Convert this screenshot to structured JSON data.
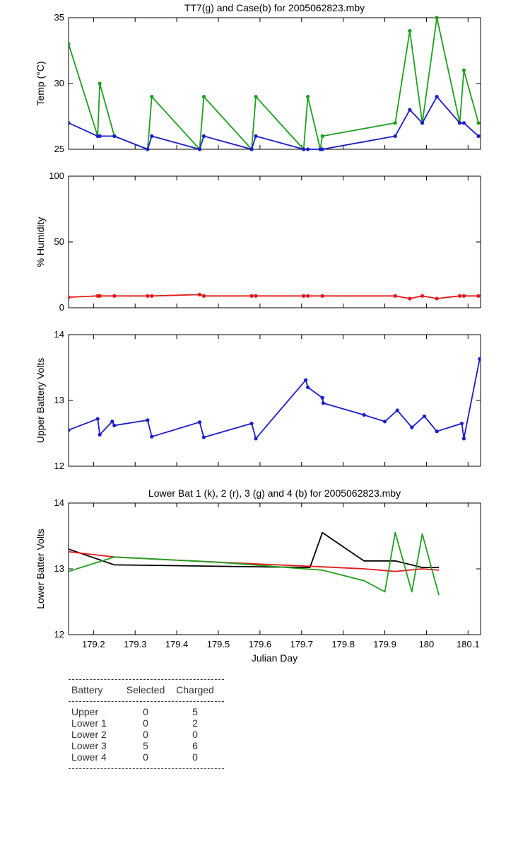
{
  "colors": {
    "g": "#1ea01e",
    "b": "#1c1ccc",
    "r": "#e21b1b",
    "k": "#000000"
  },
  "chart_data": [
    {
      "id": "temp",
      "type": "line",
      "title": "TT7(g) and Case(b) for 2005062823.mby",
      "xlabel": "",
      "ylabel": "Temp  (°C)",
      "xlim": [
        179.14,
        180.13
      ],
      "ylim": [
        25,
        35
      ],
      "yticks": [
        25,
        30,
        35
      ],
      "show_xtick_labels": false,
      "markers": true,
      "series": [
        {
          "color": "g",
          "x": [
            179.14,
            179.21,
            179.215,
            179.25,
            179.33,
            179.34,
            179.455,
            179.465,
            179.58,
            179.59,
            179.705,
            179.715,
            179.745,
            179.75,
            179.925,
            179.96,
            179.99,
            180.025,
            180.08,
            180.09,
            180.125
          ],
          "y": [
            33,
            26,
            30,
            26,
            25,
            29,
            25,
            29,
            25,
            29,
            25,
            29,
            25,
            26,
            27,
            34,
            27,
            35,
            27,
            31,
            27
          ]
        },
        {
          "color": "b",
          "x": [
            179.14,
            179.21,
            179.215,
            179.25,
            179.33,
            179.34,
            179.455,
            179.465,
            179.58,
            179.59,
            179.705,
            179.715,
            179.745,
            179.75,
            179.925,
            179.96,
            179.99,
            180.025,
            180.08,
            180.09,
            180.125
          ],
          "y": [
            27,
            26,
            26,
            26,
            25,
            26,
            25,
            26,
            25,
            26,
            25,
            25,
            25,
            25,
            26,
            28,
            27,
            29,
            27,
            27,
            26
          ]
        }
      ]
    },
    {
      "id": "humidity",
      "type": "line",
      "title": "",
      "xlabel": "",
      "ylabel": "% Humidity",
      "xlim": [
        179.14,
        180.13
      ],
      "ylim": [
        0,
        100
      ],
      "yticks": [
        0,
        50,
        100
      ],
      "show_xtick_labels": false,
      "markers": true,
      "series": [
        {
          "color": "r",
          "x": [
            179.14,
            179.21,
            179.215,
            179.25,
            179.33,
            179.34,
            179.455,
            179.465,
            179.58,
            179.59,
            179.705,
            179.715,
            179.75,
            179.925,
            179.96,
            179.99,
            180.025,
            180.08,
            180.09,
            180.125
          ],
          "y": [
            8,
            9,
            9,
            9,
            9,
            9,
            10,
            9,
            9,
            9,
            9,
            9,
            9,
            9,
            7,
            9,
            7,
            9,
            9,
            9
          ]
        }
      ]
    },
    {
      "id": "upper",
      "type": "line",
      "title": "",
      "xlabel": "",
      "ylabel": "Upper Battery Volts",
      "xlim": [
        179.14,
        180.13
      ],
      "ylim": [
        12,
        14
      ],
      "yticks": [
        12,
        13,
        14
      ],
      "show_xtick_labels": false,
      "markers": true,
      "series": [
        {
          "color": "b",
          "x": [
            179.14,
            179.21,
            179.215,
            179.245,
            179.25,
            179.33,
            179.34,
            179.455,
            179.465,
            179.58,
            179.59,
            179.71,
            179.715,
            179.75,
            179.752,
            179.85,
            179.9,
            179.93,
            179.965,
            179.995,
            180.025,
            180.085,
            180.09,
            180.128
          ],
          "y": [
            12.55,
            12.72,
            12.48,
            12.68,
            12.62,
            12.7,
            12.45,
            12.67,
            12.44,
            12.65,
            12.42,
            13.31,
            13.2,
            13.04,
            12.96,
            12.78,
            12.68,
            12.85,
            12.59,
            12.76,
            12.53,
            12.65,
            12.42,
            13.63
          ]
        }
      ]
    },
    {
      "id": "lower",
      "type": "line",
      "title": "Lower Bat 1 (k), 2 (r), 3 (g) and 4 (b) for 2005062823.mby",
      "xlabel": "Julian Day",
      "ylabel": "Lower Batter Volts",
      "xlim": [
        179.14,
        180.13
      ],
      "ylim": [
        12,
        14
      ],
      "yticks": [
        12,
        13,
        14
      ],
      "xticks": [
        179.2,
        179.3,
        179.4,
        179.5,
        179.6,
        179.7,
        179.8,
        179.9,
        180,
        180.1
      ],
      "xticklabels": [
        "179.2",
        "179.3",
        "179.4",
        "179.5",
        "179.6",
        "179.7",
        "179.8",
        "179.9",
        "180",
        "180.1"
      ],
      "show_xtick_labels": true,
      "markers": false,
      "series": [
        {
          "color": "k",
          "x": [
            179.14,
            179.25,
            179.72,
            179.75,
            179.85,
            179.925,
            179.99,
            180.03
          ],
          "y": [
            13.3,
            13.06,
            13.02,
            13.55,
            13.12,
            13.12,
            13.02,
            13.02
          ]
        },
        {
          "color": "r",
          "x": [
            179.14,
            179.25,
            179.5,
            179.75,
            179.85,
            179.925,
            179.99,
            180.03
          ],
          "y": [
            13.26,
            13.18,
            13.1,
            13.03,
            13.0,
            12.96,
            13.0,
            12.98
          ]
        },
        {
          "color": "g",
          "x": [
            179.14,
            179.25,
            179.5,
            179.75,
            179.85,
            179.9,
            179.925,
            179.965,
            179.99,
            180.03
          ],
          "y": [
            12.96,
            13.18,
            13.1,
            12.98,
            12.82,
            12.65,
            13.55,
            12.65,
            13.53,
            12.6
          ]
        }
      ]
    }
  ],
  "table": {
    "headers": [
      "Battery",
      "Selected",
      "Charged"
    ],
    "rows": [
      [
        "Upper",
        "0",
        "5"
      ],
      [
        "Lower 1",
        "0",
        "2"
      ],
      [
        "Lower 2",
        "0",
        "0"
      ],
      [
        "Lower 3",
        "5",
        "6"
      ],
      [
        "Lower 4",
        "0",
        "0"
      ]
    ]
  }
}
